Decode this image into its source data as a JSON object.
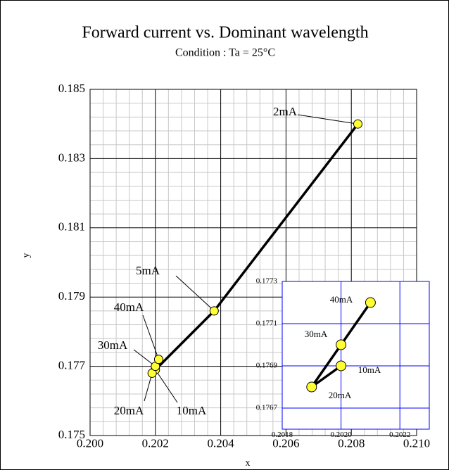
{
  "chart_data": [
    {
      "type": "line",
      "title": "Forward current vs. Dominant wavelength",
      "subtitle": "Condition : Ta = 25°C",
      "xlabel": "x",
      "ylabel": "y",
      "x": [
        0.2082,
        0.2038,
        0.202,
        0.2019,
        0.202,
        0.2021
      ],
      "series": [
        {
          "color": "#000000",
          "marker_color": "#ffff33",
          "values": [
            0.184,
            0.1786,
            0.1769,
            0.1768,
            0.177,
            0.1772
          ],
          "point_labels": [
            "2mA",
            "5mA",
            "10mA",
            "20mA",
            "30mA",
            "40mA"
          ]
        }
      ],
      "xlim": [
        0.2,
        0.21
      ],
      "ylim": [
        0.175,
        0.185
      ],
      "xticks": [
        {
          "value": 0.2,
          "label": "0.200"
        },
        0.202,
        0.204,
        0.206,
        0.208,
        {
          "value": 0.21,
          "label": "0.210"
        }
      ],
      "yticks": [
        0.175,
        0.177,
        0.179,
        0.181,
        0.183,
        0.185
      ],
      "grid": true,
      "minor_grid": true,
      "grid_color": "#000000"
    },
    {
      "type": "line",
      "x": [
        0.202,
        0.2019,
        0.202,
        0.2021
      ],
      "series": [
        {
          "color": "#000000",
          "marker_color": "#ffff33",
          "values": [
            0.1769,
            0.1768,
            0.177,
            0.1772
          ],
          "point_labels": [
            "10mA",
            "20mA",
            "30mA",
            "40mA"
          ]
        }
      ],
      "xlim": [
        0.2018,
        0.2023
      ],
      "ylim": [
        0.1766,
        0.1773
      ],
      "xticks": [
        0.2018,
        {
          "value": 0.202,
          "label": "0.2020"
        },
        0.2022
      ],
      "yticks": [
        0.1767,
        0.1769,
        0.1771,
        0.1773
      ],
      "grid": true,
      "grid_color": "#0000ff"
    }
  ]
}
